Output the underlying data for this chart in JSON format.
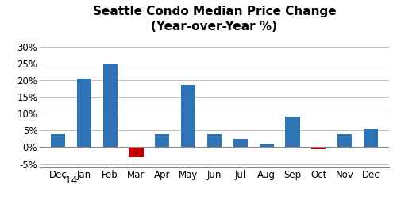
{
  "categories": [
    "Dec",
    "Jan",
    "Feb",
    "Mar",
    "Apr",
    "May",
    "Jun",
    "Jul",
    "Aug",
    "Sep",
    "Oct",
    "Nov",
    "Dec"
  ],
  "values": [
    4.0,
    20.5,
    25.0,
    -3.0,
    4.0,
    18.5,
    4.0,
    2.5,
    1.0,
    9.0,
    -0.5,
    4.0,
    5.5
  ],
  "bar_colors": [
    "#2E74B5",
    "#2E74B5",
    "#2E74B5",
    "#C00000",
    "#2E74B5",
    "#2E74B5",
    "#2E74B5",
    "#2E74B5",
    "#2E74B5",
    "#2E74B5",
    "#C00000",
    "#2E74B5",
    "#2E74B5"
  ],
  "title_line1": "Seattle Condo Median Price Change",
  "title_line2": "(Year-over-Year %)",
  "year_label": "'14",
  "yticks": [
    -5,
    0,
    5,
    10,
    15,
    20,
    25,
    30
  ],
  "ytick_labels": [
    "-5%",
    "0%",
    "5%",
    "10%",
    "15%",
    "20%",
    "25%",
    "30%"
  ],
  "ylim": [
    -6.0,
    33
  ],
  "background_color": "#FFFFFF",
  "grid_color": "#C0C0C0",
  "title_fontsize": 11,
  "tick_fontsize": 8.5,
  "bar_width": 0.55
}
